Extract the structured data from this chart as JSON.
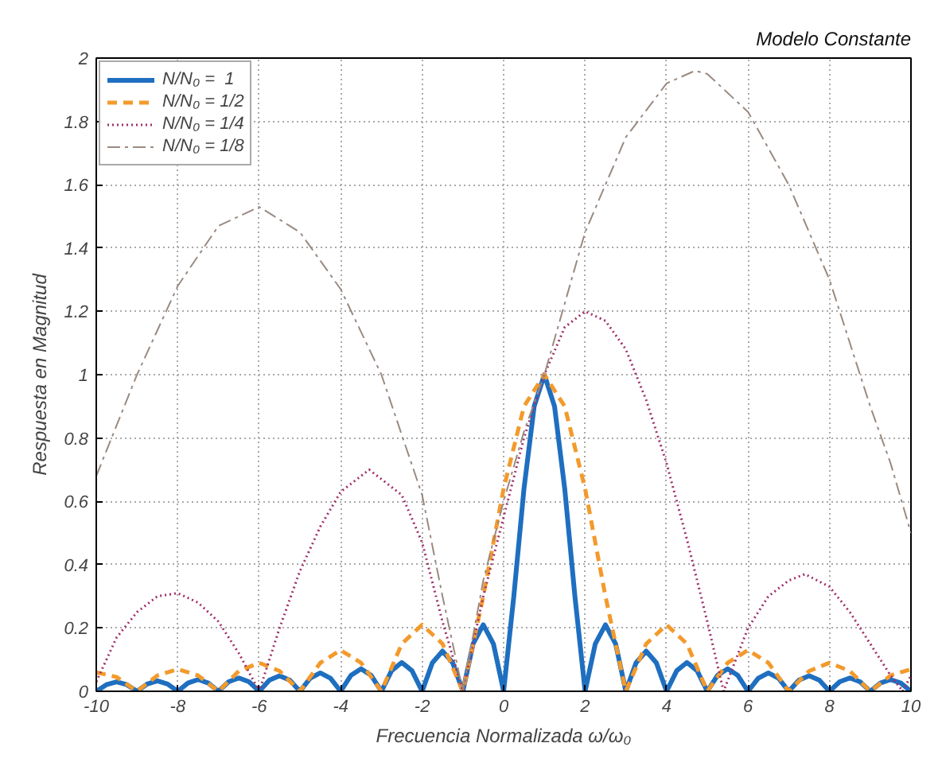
{
  "chart_data": {
    "type": "line",
    "title": "Modelo Constante",
    "xlabel": "Frecuencia Normalizada ω/ω₀",
    "ylabel": "Respuesta en Magnitud",
    "xlim": [
      -10,
      10
    ],
    "ylim": [
      0,
      2
    ],
    "xticks": [
      -10,
      -8,
      -6,
      -4,
      -2,
      0,
      2,
      4,
      6,
      8,
      10
    ],
    "yticks": [
      0,
      0.2,
      0.4,
      0.6,
      0.8,
      1,
      1.2,
      1.4,
      1.6,
      1.8,
      2
    ],
    "grid": true,
    "legend": "top left",
    "series": [
      {
        "name": "N/N₀ =  1",
        "color": "#1f6fc0",
        "line_style": "solid",
        "x": [
          -10,
          -9.75,
          -9.5,
          -9.25,
          -9,
          -8.75,
          -8.5,
          -8.25,
          -8,
          -7.75,
          -7.5,
          -7.25,
          -7,
          -6.75,
          -6.5,
          -6.25,
          -6,
          -5.75,
          -5.5,
          -5.25,
          -5,
          -4.75,
          -4.5,
          -4.25,
          -4,
          -3.75,
          -3.5,
          -3.25,
          -3,
          -2.75,
          -2.5,
          -2.25,
          -2,
          -1.75,
          -1.5,
          -1.25,
          -1,
          -0.75,
          -0.5,
          -0.25,
          0,
          0.25,
          0.5,
          0.75,
          1,
          1.25,
          1.5,
          1.75,
          2,
          2.25,
          2.5,
          2.75,
          3,
          3.25,
          3.5,
          3.75,
          4,
          4.25,
          4.5,
          4.75,
          5,
          5.25,
          5.5,
          5.75,
          6,
          6.25,
          6.5,
          6.75,
          7,
          7.25,
          7.5,
          7.75,
          8,
          8.25,
          8.5,
          8.75,
          9,
          9.25,
          9.5,
          9.75,
          10
        ],
        "values": [
          0,
          0.021,
          0.03,
          0.021,
          0,
          0.023,
          0.033,
          0.023,
          0,
          0.026,
          0.037,
          0.026,
          0,
          0.03,
          0.042,
          0.03,
          0,
          0.035,
          0.049,
          0.035,
          0,
          0.041,
          0.058,
          0.041,
          0,
          0.05,
          0.071,
          0.05,
          0,
          0.065,
          0.091,
          0.065,
          0,
          0.09,
          0.127,
          0.09,
          0,
          0.15,
          0.21,
          0.15,
          0,
          0.3,
          0.64,
          0.9,
          1,
          0.9,
          0.64,
          0.3,
          0,
          0.15,
          0.21,
          0.15,
          0,
          0.09,
          0.127,
          0.09,
          0,
          0.065,
          0.091,
          0.065,
          0,
          0.05,
          0.071,
          0.05,
          0,
          0.041,
          0.058,
          0.041,
          0,
          0.035,
          0.049,
          0.035,
          0,
          0.03,
          0.042,
          0.03,
          0,
          0.026,
          0.037,
          0.026,
          0
        ]
      },
      {
        "name": "N/N₀ = 1/2",
        "color": "#f39a2c",
        "line_style": "dashed",
        "x": [
          -10,
          -9.5,
          -9,
          -8.5,
          -8,
          -7.5,
          -7,
          -6.5,
          -6,
          -5.5,
          -5,
          -4.5,
          -4,
          -3.5,
          -3,
          -2.5,
          -2,
          -1.5,
          -1,
          -0.5,
          0,
          0.5,
          1,
          1.5,
          2,
          2.5,
          3,
          3.5,
          4,
          4.5,
          5,
          5.5,
          6,
          6.5,
          7,
          7.5,
          8,
          8.5,
          9,
          9.5,
          10
        ],
        "values": [
          0.06,
          0.045,
          0,
          0.05,
          0.07,
          0.05,
          0,
          0.064,
          0.09,
          0.064,
          0,
          0.09,
          0.13,
          0.09,
          0,
          0.15,
          0.21,
          0.15,
          0,
          0.3,
          0.64,
          0.9,
          1,
          0.9,
          0.64,
          0.3,
          0,
          0.15,
          0.21,
          0.15,
          0,
          0.09,
          0.13,
          0.09,
          0,
          0.064,
          0.09,
          0.064,
          0,
          0.05,
          0.07
        ]
      },
      {
        "name": "N/N₀ = 1/4",
        "color": "#a0306a",
        "line_style": "dotted",
        "x": [
          -10,
          -9.5,
          -9,
          -8.5,
          -8,
          -7.5,
          -7,
          -6.5,
          -6,
          -5.5,
          -5,
          -4.5,
          -4,
          -3.3,
          -2.5,
          -2,
          -1.5,
          -1,
          -0.5,
          0,
          0.5,
          1,
          1.5,
          2,
          2.5,
          3,
          3.5,
          4,
          4.5,
          5,
          5.4,
          6,
          6.5,
          7,
          7.4,
          8,
          8.5,
          9,
          9.5,
          9.8,
          10
        ],
        "values": [
          0.03,
          0.17,
          0.25,
          0.3,
          0.31,
          0.28,
          0.22,
          0.12,
          0,
          0.2,
          0.38,
          0.52,
          0.63,
          0.7,
          0.62,
          0.47,
          0.22,
          0,
          0.3,
          0.55,
          0.8,
          1,
          1.15,
          1.2,
          1.17,
          1.08,
          0.92,
          0.72,
          0.48,
          0.22,
          0,
          0.2,
          0.3,
          0.35,
          0.37,
          0.33,
          0.25,
          0.15,
          0.05,
          0,
          0.05
        ]
      },
      {
        "name": "N/N₀ = 1/8",
        "color": "#9a8a80",
        "line_style": "dashdot",
        "x": [
          -10,
          -9,
          -8,
          -7,
          -6,
          -5,
          -4,
          -3,
          -2,
          -1.5,
          -1,
          -0.5,
          0,
          0.5,
          1,
          2,
          3,
          4,
          4.7,
          5,
          6,
          7,
          8,
          9,
          9.5,
          10
        ],
        "values": [
          0.68,
          1,
          1.28,
          1.47,
          1.53,
          1.45,
          1.27,
          1,
          0.62,
          0.3,
          0,
          0.35,
          0.6,
          0.82,
          1,
          1.45,
          1.75,
          1.92,
          1.96,
          1.95,
          1.83,
          1.6,
          1.3,
          0.9,
          0.72,
          0.5
        ]
      }
    ]
  }
}
